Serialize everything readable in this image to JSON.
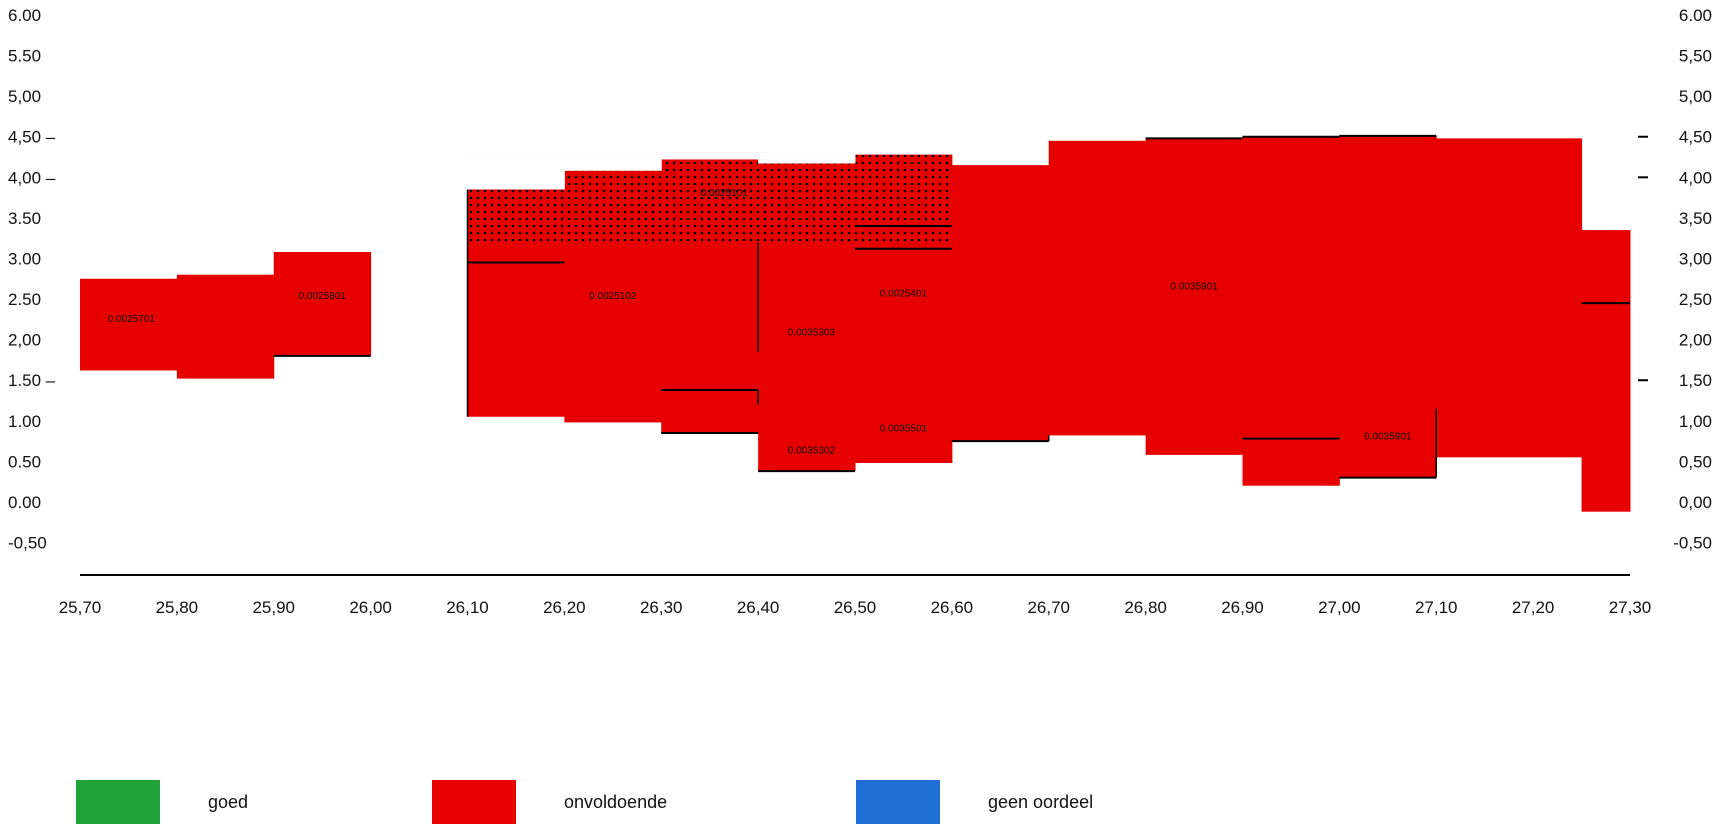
{
  "chart_data": {
    "type": "bar",
    "title": "",
    "xlabel": "",
    "ylabel": "",
    "xlim": [
      25.7,
      27.3
    ],
    "ylim": [
      -0.9,
      6.0
    ],
    "x_ticks": [
      "25,70",
      "25,80",
      "25,90",
      "26,00",
      "26,10",
      "26,20",
      "26,30",
      "26,40",
      "26,50",
      "26,60",
      "26,70",
      "26,80",
      "26,90",
      "27,00",
      "27,10",
      "27,20",
      "27,30"
    ],
    "y_ticks_left": [
      "6.00",
      "5.50",
      "5,00",
      "4,50 –",
      "4,00 –",
      "3.50",
      "3.00",
      "2.50",
      "2,00",
      "1.50 –",
      "1.00",
      "0.50",
      "0.00",
      "-0,50"
    ],
    "y_ticks_left_values": [
      6.0,
      5.5,
      5.0,
      4.5,
      4.0,
      3.5,
      3.0,
      2.5,
      2.0,
      1.5,
      1.0,
      0.5,
      0.0,
      -0.5
    ],
    "y_ticks_right": [
      "6.00",
      "5,50",
      "5,00",
      "4,50",
      "4,00",
      "3,50",
      "3,00",
      "2,50",
      "2,00",
      "1,50",
      "1,00",
      "0,50",
      "0,00",
      "-0,50"
    ],
    "y_ticks_right_values": [
      6.0,
      5.5,
      5.0,
      4.5,
      4.0,
      3.5,
      3.0,
      2.5,
      2.0,
      1.5,
      1.0,
      0.5,
      0.0,
      -0.5
    ],
    "colors": {
      "goed": "#22a33a",
      "onvoldoende": "#e60000",
      "geen_oordeel": "#1f6fd6",
      "dots": "#000000"
    },
    "blocks": [
      {
        "x0": 25.7,
        "x1": 25.8,
        "low": 1.62,
        "high": 2.75,
        "category": "onvoldoende"
      },
      {
        "x0": 25.8,
        "x1": 25.9,
        "low": 1.52,
        "high": 2.8,
        "category": "onvoldoende"
      },
      {
        "x0": 25.9,
        "x1": 26.0,
        "low": 1.8,
        "high": 3.08,
        "category": "onvoldoende"
      },
      {
        "x0": 26.1,
        "x1": 26.2,
        "low": 1.05,
        "high": 3.85,
        "category": "onvoldoende"
      },
      {
        "x0": 26.2,
        "x1": 26.3,
        "low": 0.98,
        "high": 4.08,
        "category": "onvoldoende"
      },
      {
        "x0": 26.3,
        "x1": 26.4,
        "low": 0.85,
        "high": 4.22,
        "category": "onvoldoende"
      },
      {
        "x0": 26.4,
        "x1": 26.5,
        "low": 0.38,
        "high": 4.17,
        "category": "onvoldoende"
      },
      {
        "x0": 26.5,
        "x1": 26.6,
        "low": 0.48,
        "high": 4.28,
        "category": "onvoldoende"
      },
      {
        "x0": 26.6,
        "x1": 26.7,
        "low": 0.75,
        "high": 4.15,
        "category": "onvoldoende"
      },
      {
        "x0": 26.7,
        "x1": 26.8,
        "low": 0.82,
        "high": 4.45,
        "category": "onvoldoende"
      },
      {
        "x0": 26.8,
        "x1": 26.9,
        "low": 0.58,
        "high": 4.48,
        "category": "onvoldoende"
      },
      {
        "x0": 26.9,
        "x1": 27.0,
        "low": 0.2,
        "high": 4.5,
        "category": "onvoldoende"
      },
      {
        "x0": 27.0,
        "x1": 27.1,
        "low": 0.3,
        "high": 4.51,
        "category": "onvoldoende"
      },
      {
        "x0": 27.1,
        "x1": 27.25,
        "low": 0.55,
        "high": 4.48,
        "category": "onvoldoende"
      },
      {
        "x0": 27.25,
        "x1": 27.3,
        "low": -0.12,
        "high": 3.35,
        "category": "onvoldoende"
      }
    ],
    "hatched": [
      {
        "x0": 26.1,
        "x1": 26.6,
        "low": 3.2,
        "high": 4.3
      }
    ],
    "hlines": [
      {
        "x0": 25.9,
        "x1": 26.0,
        "y": 1.8
      },
      {
        "x0": 26.1,
        "x1": 26.2,
        "y": 2.95
      },
      {
        "x0": 26.3,
        "x1": 26.4,
        "y": 1.38
      },
      {
        "x0": 26.3,
        "x1": 26.4,
        "y": 0.85
      },
      {
        "x0": 26.4,
        "x1": 26.5,
        "y": 0.38
      },
      {
        "x0": 26.5,
        "x1": 26.6,
        "y": 3.4
      },
      {
        "x0": 26.5,
        "x1": 26.6,
        "y": 3.12
      },
      {
        "x0": 26.6,
        "x1": 26.7,
        "y": 0.75
      },
      {
        "x0": 26.8,
        "x1": 26.9,
        "y": 4.48
      },
      {
        "x0": 26.9,
        "x1": 27.0,
        "y": 4.5
      },
      {
        "x0": 27.0,
        "x1": 27.1,
        "y": 4.51
      },
      {
        "x0": 26.9,
        "x1": 27.0,
        "y": 0.78
      },
      {
        "x0": 27.0,
        "x1": 27.1,
        "y": 0.3
      },
      {
        "x0": 27.25,
        "x1": 27.3,
        "y": 2.45
      }
    ],
    "vlines": [
      {
        "x": 26.1,
        "y0": 1.05,
        "y1": 3.85
      },
      {
        "x": 26.4,
        "y0": 1.2,
        "y1": 1.38
      },
      {
        "x": 26.4,
        "y0": 1.85,
        "y1": 3.2
      },
      {
        "x": 26.7,
        "y0": 0.75,
        "y1": 0.82
      },
      {
        "x": 27.1,
        "y0": 0.3,
        "y1": 1.15
      }
    ],
    "labels": [
      {
        "text": "0.0025701",
        "x": 25.753,
        "y": 2.22
      },
      {
        "text": "0.0025801",
        "x": 25.95,
        "y": 2.5
      },
      {
        "text": "0.0025102",
        "x": 26.25,
        "y": 2.5
      },
      {
        "text": "0.0025101",
        "x": 26.365,
        "y": 3.77
      },
      {
        "text": "0.0035303",
        "x": 26.455,
        "y": 2.05
      },
      {
        "text": "0.0035302",
        "x": 26.455,
        "y": 0.6
      },
      {
        "text": "0.0025401",
        "x": 26.55,
        "y": 2.53
      },
      {
        "text": "0.0035501",
        "x": 26.55,
        "y": 0.87
      },
      {
        "text": "0.0035901",
        "x": 26.85,
        "y": 2.62
      },
      {
        "text": "0.0035901",
        "x": 27.05,
        "y": 0.77
      }
    ],
    "legend": [
      {
        "label": "goed",
        "color": "#22a33a"
      },
      {
        "label": "onvoldoende",
        "color": "#e60000"
      },
      {
        "label": "geen oordeel",
        "color": "#1f6fd6"
      }
    ],
    "legend_position": "bottom"
  }
}
